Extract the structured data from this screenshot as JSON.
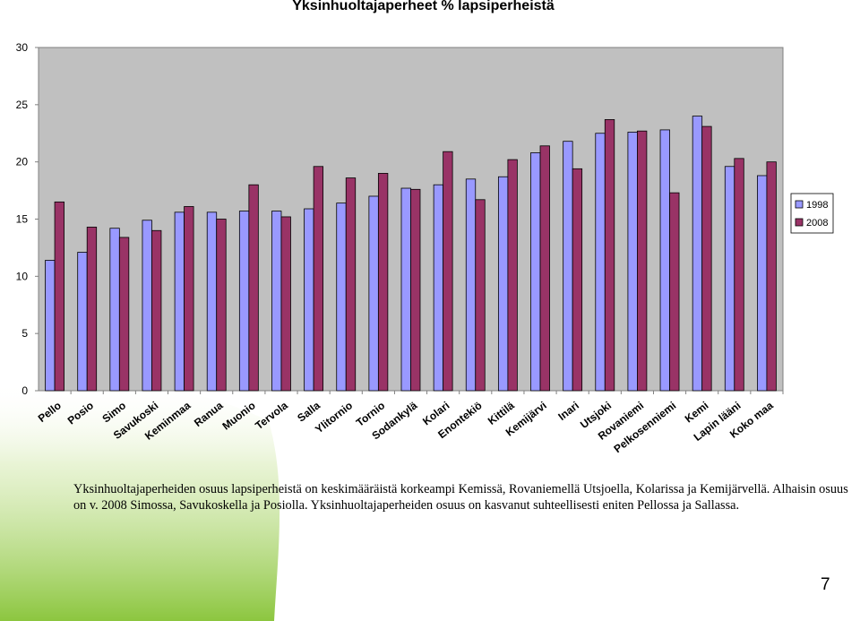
{
  "page": {
    "description": "Yksinhuoltajaperheiden osuus lapsiperheistä on keskimääräistä korkeampi Kemissä, Rovaniemellä Utsjoella, Kolarissa ja Kemijärvellä. Alhaisin osuus on v. 2008 Simossa, Savukoskella ja Posiolla. Yksinhuoltajaperheiden osuus on kasvanut suhteellisesti eniten Pellossa ja Sallassa.",
    "page_number": "7",
    "accent_color": "#8cc63f"
  },
  "chart_data": {
    "type": "bar",
    "title": "Yksinhuoltajaperheet % lapsiperheistä",
    "xlabel": "",
    "ylabel": "",
    "ylim": [
      0,
      30
    ],
    "yticks": [
      "0",
      "5",
      "10",
      "15",
      "20",
      "25",
      "30"
    ],
    "grid": false,
    "legend_position": "right",
    "plot_background": "#c0c0c0",
    "categories": [
      "Pello",
      "Posio",
      "Simo",
      "Savukoski",
      "Keminmaa",
      "Ranua",
      "Muonio",
      "Tervola",
      "Salla",
      "Ylitornio",
      "Tornio",
      "Sodankylä",
      "Kolari",
      "Enontekiö",
      "Kittilä",
      "Kemijärvi",
      "Inari",
      "Utsjoki",
      "Rovaniemi",
      "Pelkosenniemi",
      "Kemi",
      "Lapin lääni",
      "Koko maa"
    ],
    "series": [
      {
        "name": "1998",
        "color": "#9999ff",
        "values": [
          11.4,
          12.1,
          14.2,
          14.9,
          15.6,
          15.6,
          15.7,
          15.7,
          15.9,
          16.4,
          17.0,
          17.7,
          18.0,
          18.5,
          18.7,
          20.8,
          21.8,
          22.5,
          22.6,
          22.8,
          24.0,
          19.6,
          18.8
        ]
      },
      {
        "name": "2008",
        "color": "#993366",
        "values": [
          16.5,
          14.3,
          13.4,
          14.0,
          16.1,
          15.0,
          18.0,
          15.2,
          19.6,
          18.6,
          19.0,
          17.6,
          20.9,
          16.7,
          20.2,
          21.4,
          19.4,
          23.7,
          22.7,
          17.3,
          23.1,
          20.3,
          20.0
        ]
      }
    ]
  }
}
